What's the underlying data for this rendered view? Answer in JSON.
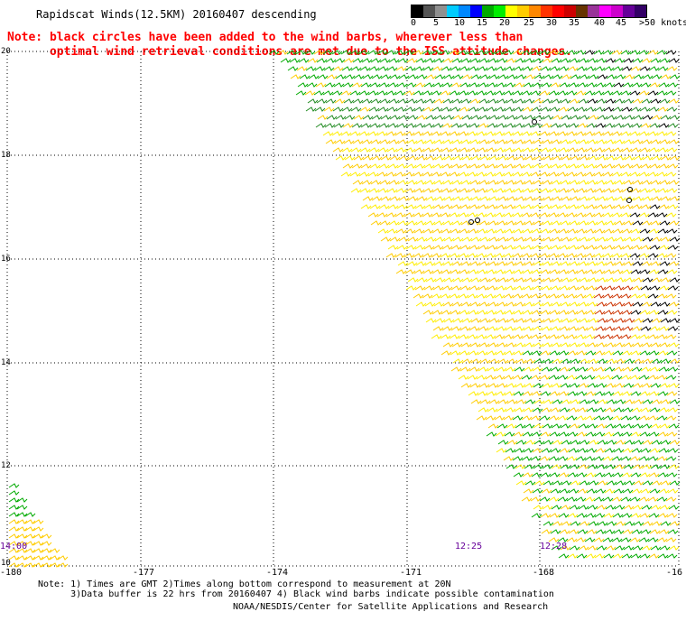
{
  "title": "Rapidscat Winds(12.5KM) 20160407 descending",
  "note_red_line1": "Note: black circles have been added to the wind barbs, wherever less than",
  "note_red_line2": "      optimal wind retrieval conditions are met due to the ISS attitude changes.",
  "legend": {
    "colors": [
      "#000000",
      "#555555",
      "#909090",
      "#00ccff",
      "#0088ff",
      "#0000ff",
      "#00aa00",
      "#00ee00",
      "#ffff00",
      "#ffcc00",
      "#ff8800",
      "#ff3300",
      "#ff0000",
      "#cc0000",
      "#663300",
      "#993399",
      "#ff00ff",
      "#cc00cc",
      "#660099",
      "#330066"
    ],
    "labels": [
      "0",
      "5",
      "10",
      "15",
      "20",
      "25",
      "30",
      "35",
      "40",
      "45",
      ">50 knots"
    ]
  },
  "y_labels": [
    "20",
    "18",
    "16",
    "14",
    "12",
    "10"
  ],
  "x_labels": [
    "-180",
    "-177",
    "-174",
    "-171",
    "-168",
    "-16"
  ],
  "time_labels": [
    "14:00",
    "12:25",
    "12:28"
  ],
  "note_bottom": "Note: 1) Times are GMT 2)Times along bottom correspond to measurement at 20N\n      3)Data buffer is 22 hrs from 20160407 4) Black wind barbs indicate possible contamination",
  "credit": "NOAA/NESDIS/Center for Satellite Applications and Research"
}
